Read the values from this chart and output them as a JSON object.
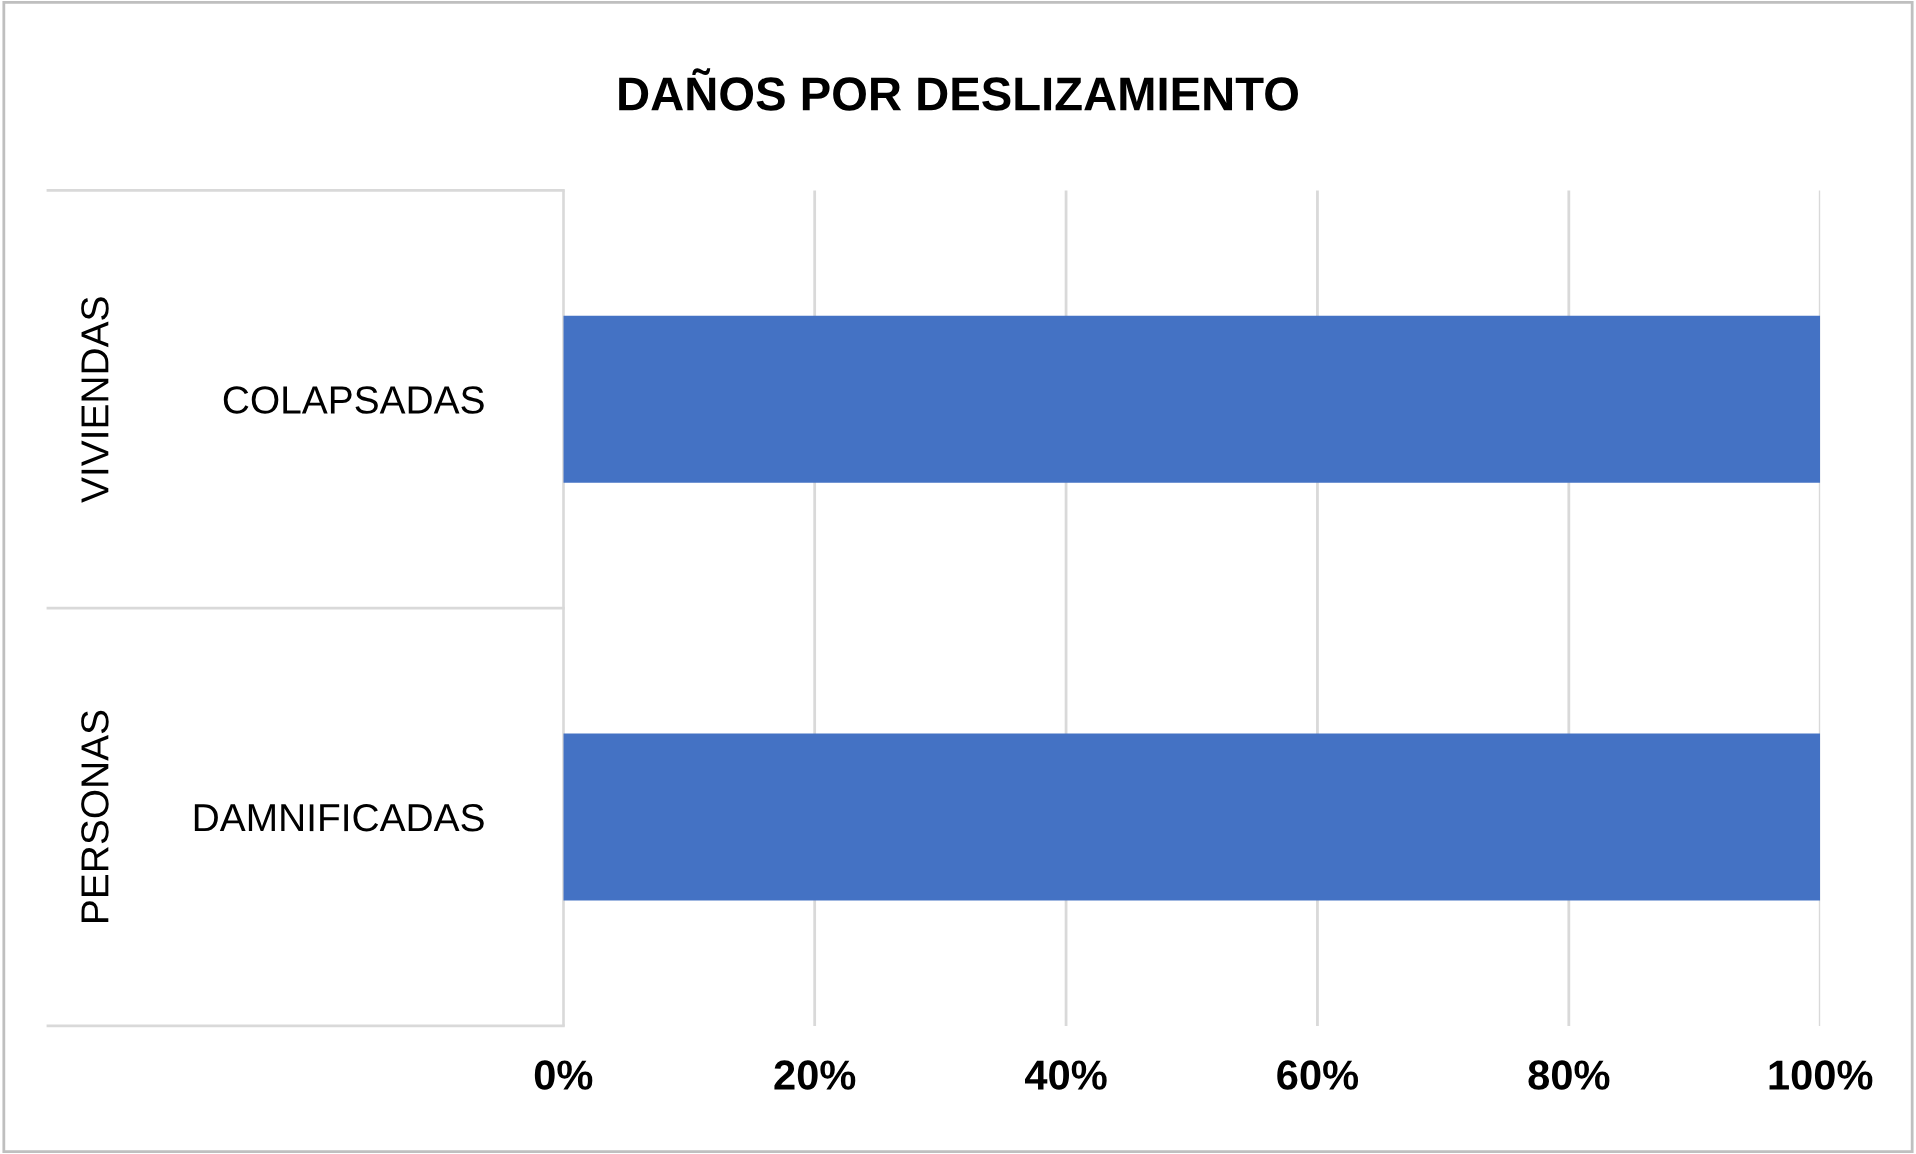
{
  "chart_data": {
    "type": "bar",
    "orientation": "horizontal",
    "title": "DAÑOS POR DESLIZAMIENTO",
    "categories": [
      "COLAPSADAS",
      "DAMNIFICADAS"
    ],
    "values": [
      100,
      100
    ],
    "color": "#4472c4",
    "annotations": [
      "VIVIENDAS",
      "PERSONAS"
    ],
    "xlim": [
      0,
      100
    ],
    "xticks": [
      {
        "value": 0,
        "label": "0%"
      },
      {
        "value": 20,
        "label": "20%"
      },
      {
        "value": 40,
        "label": "40%"
      },
      {
        "value": 60,
        "label": "60%"
      },
      {
        "value": 80,
        "label": "80%"
      },
      {
        "value": 100,
        "label": "100%"
      }
    ],
    "grid": "x"
  }
}
